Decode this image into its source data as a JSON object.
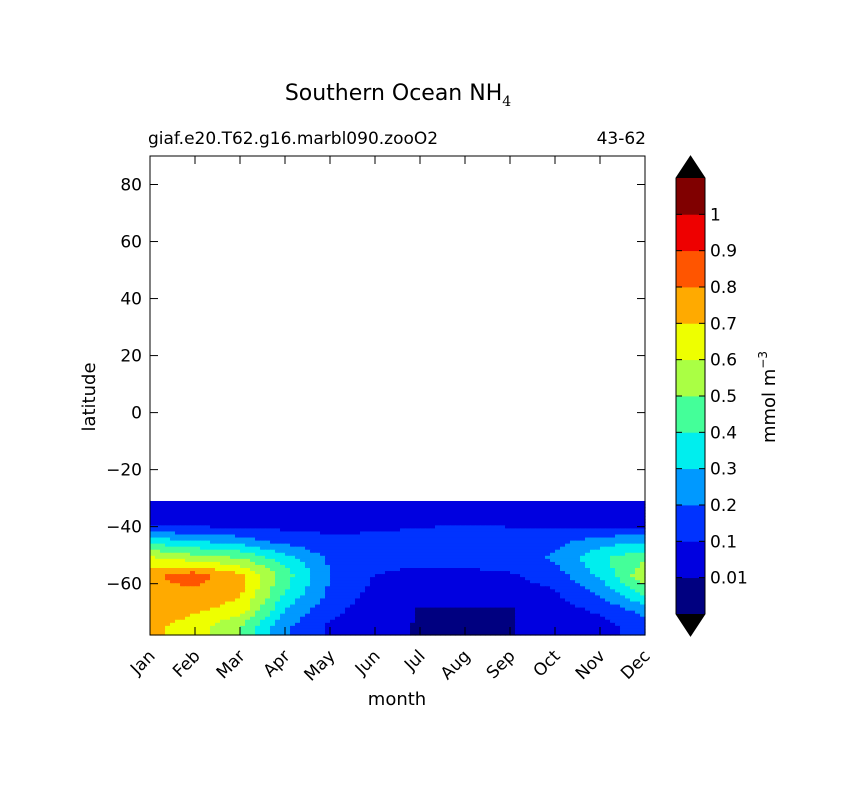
{
  "chart_data": {
    "type": "heatmap",
    "subtype": "filled-contour",
    "title": "Southern Ocean NH",
    "title_subscript": "4",
    "subtitle_left": "giaf.e20.T62.g16.marbl090.zooO2",
    "subtitle_right": "43-62",
    "xlabel": "month",
    "ylabel": "latitude",
    "x_categories": [
      "Jan",
      "Feb",
      "Mar",
      "Apr",
      "May",
      "Jun",
      "Jul",
      "Aug",
      "Sep",
      "Oct",
      "Nov",
      "Dec"
    ],
    "y_ticks": [
      -60,
      -40,
      -20,
      0,
      20,
      40,
      60,
      80
    ],
    "y_tick_labels": [
      "−60",
      "−40",
      "−20",
      "0",
      "20",
      "40",
      "60",
      "80"
    ],
    "ylim": [
      -78,
      90
    ],
    "data_lat_range": [
      -78,
      -31
    ],
    "grid": false,
    "colorbar": {
      "label": "mmol m",
      "label_superscript": "−3",
      "levels": [
        0.01,
        0.1,
        0.2,
        0.3,
        0.4,
        0.5,
        0.6,
        0.7,
        0.8,
        0.9,
        1
      ],
      "tick_labels": [
        "0.01",
        "0.1",
        "0.2",
        "0.3",
        "0.4",
        "0.5",
        "0.6",
        "0.7",
        "0.8",
        "0.9",
        "1"
      ],
      "colors": [
        "#000080",
        "#0000e0",
        "#0033ff",
        "#0099ff",
        "#00eeee",
        "#44ff99",
        "#aaff44",
        "#eeff00",
        "#ffaa00",
        "#ff5500",
        "#ee0000",
        "#800000"
      ],
      "extend": "both",
      "extend_color": "#000000"
    },
    "lat_profiles": [
      -33,
      -39,
      -45,
      -51,
      -57,
      -63,
      -69,
      -75
    ],
    "values_by_month": [
      [
        0.02,
        0.06,
        0.35,
        0.62,
        0.78,
        0.78,
        0.78,
        0.72
      ],
      [
        0.02,
        0.06,
        0.3,
        0.55,
        0.85,
        0.78,
        0.72,
        0.65
      ],
      [
        0.02,
        0.06,
        0.25,
        0.5,
        0.72,
        0.72,
        0.66,
        0.5
      ],
      [
        0.02,
        0.06,
        0.16,
        0.34,
        0.45,
        0.4,
        0.3,
        0.22
      ],
      [
        0.02,
        0.07,
        0.12,
        0.18,
        0.2,
        0.18,
        0.13,
        0.08
      ],
      [
        0.02,
        0.08,
        0.12,
        0.13,
        0.1,
        0.07,
        0.05,
        0.03
      ],
      [
        0.02,
        0.09,
        0.13,
        0.12,
        0.08,
        0.04,
        0.006,
        0.005
      ],
      [
        0.02,
        0.1,
        0.14,
        0.13,
        0.08,
        0.04,
        0.005,
        0.004
      ],
      [
        0.02,
        0.09,
        0.14,
        0.14,
        0.09,
        0.05,
        0.006,
        0.005
      ],
      [
        0.02,
        0.08,
        0.16,
        0.22,
        0.15,
        0.09,
        0.06,
        0.04
      ],
      [
        0.02,
        0.05,
        0.25,
        0.38,
        0.32,
        0.22,
        0.12,
        0.06
      ],
      [
        0.02,
        0.05,
        0.28,
        0.48,
        0.58,
        0.45,
        0.25,
        0.15
      ]
    ]
  }
}
